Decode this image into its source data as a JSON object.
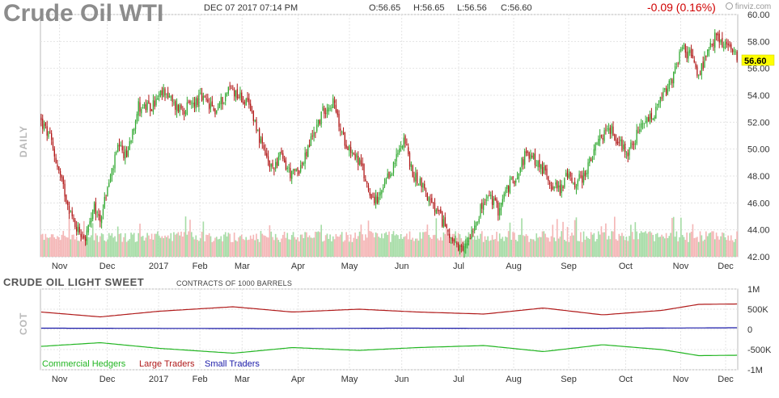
{
  "header": {
    "title": "Crude Oil WTI",
    "datetime": "DEC 07 2017 07:14 PM",
    "open": "O:56.65",
    "high": "H:56.65",
    "low": "L:56.56",
    "close": "C:56.60",
    "change": "-0.09 (0.16%)",
    "brand": "finviz.com",
    "current_price": "56.60"
  },
  "price_panel": {
    "side_label": "DAILY",
    "y_ticks": [
      "60.00",
      "58.00",
      "56.00",
      "54.00",
      "52.00",
      "50.00",
      "48.00",
      "46.00",
      "44.00",
      "42.00"
    ]
  },
  "cot_panel": {
    "title": "CRUDE OIL LIGHT SWEET",
    "subtitle": "CONTRACTS OF 1000 BARRELS",
    "side_label": "COT",
    "y_ticks": [
      "1M",
      "500K",
      "0",
      "-500K",
      "-1M"
    ]
  },
  "months": [
    "Nov",
    "Dec",
    "2017",
    "Feb",
    "Mar",
    "Apr",
    "May",
    "Jun",
    "Jul",
    "Aug",
    "Sep",
    "Oct",
    "Nov",
    "Dec"
  ],
  "legend": {
    "commercial": "Commercial Hedgers",
    "large": "Large Traders",
    "small": "Small Traders"
  },
  "colors": {
    "up": "#2fa82f",
    "down": "#b01515",
    "vol_up": "#a6dca6",
    "vol_down": "#f4b6b6",
    "commercial": "#22b522",
    "large": "#b01a1a",
    "small": "#1a1aa8",
    "price_tag": "#ffff00",
    "grid": "#e4e4e4"
  },
  "chart_data": [
    {
      "type": "candlestick",
      "title": "Crude Oil WTI",
      "ylabel": "DAILY",
      "ylim": [
        42,
        60
      ],
      "x_months": [
        "Nov",
        "Dec",
        "2017",
        "Feb",
        "Mar",
        "Apr",
        "May",
        "Jun",
        "Jul",
        "Aug",
        "Sep",
        "Oct",
        "Nov",
        "Dec"
      ],
      "close_path_anchors": [
        [
          0,
          52.0
        ],
        [
          6,
          50.8
        ],
        [
          14,
          47.5
        ],
        [
          22,
          44.5
        ],
        [
          30,
          43.4
        ],
        [
          36,
          45.5
        ],
        [
          40,
          44.8
        ],
        [
          46,
          47.5
        ],
        [
          52,
          50.0
        ],
        [
          58,
          49.5
        ],
        [
          62,
          51.5
        ],
        [
          66,
          53.2
        ],
        [
          74,
          53.0
        ],
        [
          84,
          54.4
        ],
        [
          90,
          53.2
        ],
        [
          98,
          53.0
        ],
        [
          108,
          53.8
        ],
        [
          118,
          52.8
        ],
        [
          128,
          54.6
        ],
        [
          138,
          53.6
        ],
        [
          144,
          52.5
        ],
        [
          150,
          50.0
        ],
        [
          156,
          48.5
        ],
        [
          162,
          49.5
        ],
        [
          170,
          48.0
        ],
        [
          178,
          49.0
        ],
        [
          184,
          51.0
        ],
        [
          192,
          53.0
        ],
        [
          198,
          53.5
        ],
        [
          204,
          51.0
        ],
        [
          210,
          50.0
        ],
        [
          216,
          49.0
        ],
        [
          222,
          47.0
        ],
        [
          228,
          46.0
        ],
        [
          234,
          47.5
        ],
        [
          240,
          49.0
        ],
        [
          246,
          51.0
        ],
        [
          252,
          48.0
        ],
        [
          258,
          47.5
        ],
        [
          264,
          46.0
        ],
        [
          270,
          45.0
        ],
        [
          276,
          44.0
        ],
        [
          282,
          42.5
        ],
        [
          286,
          42.3
        ],
        [
          292,
          44.0
        ],
        [
          298,
          45.5
        ],
        [
          304,
          46.5
        ],
        [
          310,
          45.5
        ],
        [
          316,
          47.0
        ],
        [
          322,
          48.0
        ],
        [
          328,
          49.5
        ],
        [
          334,
          49.3
        ],
        [
          340,
          48.5
        ],
        [
          346,
          47.5
        ],
        [
          352,
          47.0
        ],
        [
          356,
          48.0
        ],
        [
          362,
          47.5
        ],
        [
          368,
          48.0
        ],
        [
          374,
          49.5
        ],
        [
          380,
          51.0
        ],
        [
          386,
          51.5
        ],
        [
          392,
          50.5
        ],
        [
          398,
          49.8
        ],
        [
          404,
          51.0
        ],
        [
          410,
          52.0
        ],
        [
          416,
          52.5
        ],
        [
          422,
          54.0
        ],
        [
          428,
          55.0
        ],
        [
          434,
          57.5
        ],
        [
          440,
          57.0
        ],
        [
          446,
          55.5
        ],
        [
          452,
          57.0
        ],
        [
          458,
          58.5
        ],
        [
          462,
          57.8
        ],
        [
          468,
          57.5
        ],
        [
          472,
          56.6
        ]
      ],
      "last_close": 56.6
    },
    {
      "type": "line",
      "title": "CRUDE OIL LIGHT SWEET",
      "subtitle": "CONTRACTS OF 1000 BARRELS",
      "ylabel": "COT",
      "ylim": [
        -1000000,
        1000000
      ],
      "series": [
        {
          "name": "Large Traders",
          "anchors": [
            [
              0,
              430000
            ],
            [
              40,
              310000
            ],
            [
              80,
              450000
            ],
            [
              130,
              560000
            ],
            [
              170,
              430000
            ],
            [
              215,
              500000
            ],
            [
              255,
              430000
            ],
            [
              300,
              380000
            ],
            [
              340,
              530000
            ],
            [
              380,
              360000
            ],
            [
              420,
              470000
            ],
            [
              445,
              620000
            ],
            [
              472,
              630000
            ]
          ]
        },
        {
          "name": "Small Traders",
          "anchors": [
            [
              0,
              30000
            ],
            [
              80,
              25000
            ],
            [
              160,
              20000
            ],
            [
              240,
              30000
            ],
            [
              320,
              25000
            ],
            [
              400,
              30000
            ],
            [
              472,
              40000
            ]
          ]
        },
        {
          "name": "Commercial Hedgers",
          "anchors": [
            [
              0,
              -420000
            ],
            [
              40,
              -330000
            ],
            [
              80,
              -470000
            ],
            [
              130,
              -590000
            ],
            [
              170,
              -450000
            ],
            [
              215,
              -520000
            ],
            [
              255,
              -450000
            ],
            [
              300,
              -400000
            ],
            [
              340,
              -550000
            ],
            [
              380,
              -380000
            ],
            [
              420,
              -500000
            ],
            [
              445,
              -650000
            ],
            [
              472,
              -640000
            ]
          ]
        }
      ]
    }
  ]
}
